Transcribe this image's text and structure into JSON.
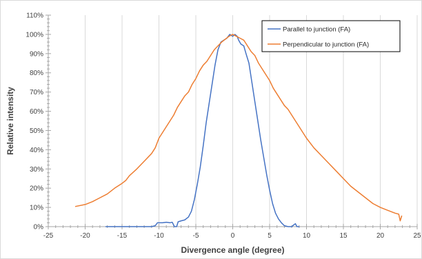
{
  "chart_data": {
    "type": "line",
    "title": "",
    "xlabel": "Divergence angle (degree)",
    "ylabel": "Relative intensity",
    "xlim": [
      -25,
      25
    ],
    "ylim": [
      0,
      110
    ],
    "x_ticks": [
      -25,
      -20,
      -15,
      -10,
      -5,
      0,
      5,
      10,
      15,
      20,
      25
    ],
    "x_tick_labels": [
      "-25",
      "-20",
      "-15",
      "-10",
      "-5",
      "0",
      "5",
      "10",
      "15",
      "20",
      "25"
    ],
    "y_ticks": [
      0,
      10,
      20,
      30,
      40,
      50,
      60,
      70,
      80,
      90,
      100,
      110
    ],
    "y_tick_labels": [
      "0%",
      "10%",
      "20%",
      "30%",
      "40%",
      "50%",
      "60%",
      "70%",
      "80%",
      "90%",
      "100%",
      "110%"
    ],
    "grid": "vertical major gridlines",
    "legend_position": "top-right",
    "series": [
      {
        "name": "Parallel to junction (FA)",
        "color": "#4472c4",
        "points": [
          [
            -17.2,
            0
          ],
          [
            -11,
            0
          ],
          [
            -10.5,
            0.5
          ],
          [
            -10.2,
            2
          ],
          [
            -9.5,
            2
          ],
          [
            -9,
            2.3
          ],
          [
            -8.5,
            2
          ],
          [
            -8.2,
            2.3
          ],
          [
            -7.9,
            0
          ],
          [
            -7.8,
            0
          ],
          [
            -7.6,
            0
          ],
          [
            -7.4,
            2.5
          ],
          [
            -7,
            3
          ],
          [
            -6.5,
            3.5
          ],
          [
            -6,
            5
          ],
          [
            -5.6,
            8
          ],
          [
            -5.2,
            14
          ],
          [
            -4.8,
            22
          ],
          [
            -4.4,
            31
          ],
          [
            -4,
            42
          ],
          [
            -3.6,
            54
          ],
          [
            -3.2,
            64
          ],
          [
            -2.8,
            74
          ],
          [
            -2.4,
            84
          ],
          [
            -2,
            92
          ],
          [
            -1.6,
            96
          ],
          [
            -1.2,
            97
          ],
          [
            -0.8,
            98
          ],
          [
            -0.4,
            100
          ],
          [
            0,
            99
          ],
          [
            0.3,
            100
          ],
          [
            0.6,
            99
          ],
          [
            0.8,
            97
          ],
          [
            1.1,
            95
          ],
          [
            1.5,
            94
          ],
          [
            1.8,
            90
          ],
          [
            2.2,
            85
          ],
          [
            2.6,
            75
          ],
          [
            3,
            65
          ],
          [
            3.4,
            55
          ],
          [
            3.8,
            45
          ],
          [
            4.2,
            36
          ],
          [
            4.6,
            27
          ],
          [
            5,
            19
          ],
          [
            5.4,
            12
          ],
          [
            5.8,
            7
          ],
          [
            6.2,
            4
          ],
          [
            6.6,
            2
          ],
          [
            7,
            0.5
          ],
          [
            7.5,
            0
          ],
          [
            8,
            0
          ],
          [
            8.3,
            1
          ],
          [
            8.5,
            1.5
          ],
          [
            8.7,
            0
          ],
          [
            9,
            0
          ]
        ]
      },
      {
        "name": "Perpendicular to junction (FA)",
        "color": "#ed7d31",
        "points": [
          [
            -21.3,
            10.5
          ],
          [
            -20,
            11.5
          ],
          [
            -19,
            13
          ],
          [
            -18,
            15
          ],
          [
            -17,
            17
          ],
          [
            -16,
            20
          ],
          [
            -15,
            22.5
          ],
          [
            -14.5,
            24
          ],
          [
            -14,
            26.5
          ],
          [
            -13,
            30
          ],
          [
            -12,
            34
          ],
          [
            -11,
            38
          ],
          [
            -10.5,
            41
          ],
          [
            -10,
            46
          ],
          [
            -9.5,
            49
          ],
          [
            -9,
            52
          ],
          [
            -8.5,
            55
          ],
          [
            -8,
            58
          ],
          [
            -7.5,
            62
          ],
          [
            -7,
            65
          ],
          [
            -6.5,
            68
          ],
          [
            -6,
            70
          ],
          [
            -5.5,
            74
          ],
          [
            -5,
            77
          ],
          [
            -4.5,
            81
          ],
          [
            -4,
            84
          ],
          [
            -3.5,
            86
          ],
          [
            -3,
            89
          ],
          [
            -2.5,
            92
          ],
          [
            -2,
            94
          ],
          [
            -1.5,
            96
          ],
          [
            -1,
            97.5
          ],
          [
            -0.5,
            99
          ],
          [
            0,
            100
          ],
          [
            0.5,
            99
          ],
          [
            1,
            98
          ],
          [
            1.5,
            97
          ],
          [
            2,
            94
          ],
          [
            2.5,
            91
          ],
          [
            3,
            89
          ],
          [
            3.5,
            85
          ],
          [
            4,
            82
          ],
          [
            4.5,
            79
          ],
          [
            5,
            76
          ],
          [
            5.5,
            72
          ],
          [
            6,
            69
          ],
          [
            6.5,
            66
          ],
          [
            7,
            63
          ],
          [
            7.5,
            61
          ],
          [
            8,
            58
          ],
          [
            8.5,
            55
          ],
          [
            9,
            52
          ],
          [
            9.5,
            49
          ],
          [
            10,
            46
          ],
          [
            11,
            41
          ],
          [
            12,
            37
          ],
          [
            13,
            33
          ],
          [
            14,
            29
          ],
          [
            15,
            25
          ],
          [
            16,
            21
          ],
          [
            17,
            18
          ],
          [
            18,
            15
          ],
          [
            19,
            12
          ],
          [
            20,
            10
          ],
          [
            21,
            8.5
          ],
          [
            22,
            7
          ],
          [
            22.5,
            6.5
          ],
          [
            22.7,
            3
          ],
          [
            22.9,
            5.5
          ]
        ]
      }
    ]
  }
}
